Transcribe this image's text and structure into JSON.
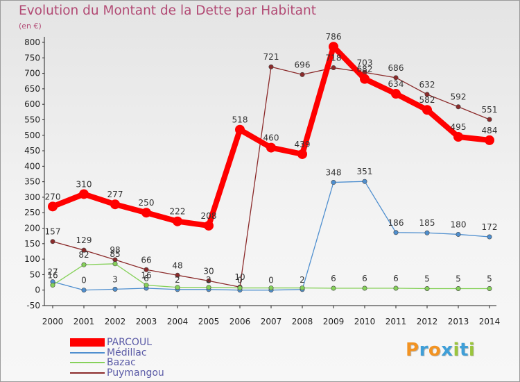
{
  "chart_data": {
    "type": "line",
    "title": "Evolution du Montant de la Dette par Habitant",
    "subtitle": "(en €)",
    "x": [
      2000,
      2001,
      2002,
      2003,
      2004,
      2005,
      2006,
      2007,
      2008,
      2009,
      2010,
      2011,
      2012,
      2013,
      2014
    ],
    "ylim": [
      -50,
      800
    ],
    "yticks": [
      -50,
      0,
      50,
      100,
      150,
      200,
      250,
      300,
      350,
      400,
      450,
      500,
      550,
      600,
      650,
      700,
      750,
      800
    ],
    "grid": false,
    "legend_position": "bottom-left",
    "series": [
      {
        "name": "PARCOUL",
        "color": "#ff0000",
        "values": [
          270,
          310,
          277,
          250,
          222,
          208,
          518,
          460,
          439,
          786,
          682,
          634,
          582,
          495,
          484
        ],
        "labels": [
          "270",
          "310",
          "277",
          "250",
          "222",
          "208",
          "518",
          "460",
          "439",
          "786",
          "682",
          "634",
          "582",
          "495",
          "484"
        ]
      },
      {
        "name": "Médillac",
        "color": "#4f8fcf",
        "values": [
          27,
          0,
          3,
          6,
          2,
          2,
          0,
          0,
          2,
          348,
          351,
          186,
          185,
          180,
          172
        ],
        "labels": [
          "27",
          "0",
          "3",
          "6",
          "2",
          "2",
          "0",
          "0",
          "2",
          "348",
          "351",
          "186",
          "185",
          "180",
          "172"
        ]
      },
      {
        "name": "Bazac",
        "color": "#86d15a",
        "values": [
          16,
          82,
          85,
          16,
          9,
          9,
          7,
          7,
          7,
          6,
          6,
          6,
          5,
          5,
          5
        ],
        "labels": [
          "16",
          "82",
          "85",
          "16",
          "",
          "",
          "",
          "",
          "",
          "6",
          "6",
          "6",
          "5",
          "5",
          "5"
        ]
      },
      {
        "name": "Puymangou",
        "color": "#8b2a2a",
        "values": [
          157,
          129,
          98,
          66,
          48,
          30,
          10,
          721,
          696,
          718,
          703,
          686,
          632,
          592,
          551
        ],
        "labels": [
          "157",
          "129",
          "98",
          "66",
          "48",
          "30",
          "10",
          "721",
          "696",
          "718",
          "703",
          "686",
          "632",
          "592",
          "551"
        ]
      }
    ]
  },
  "logo": {
    "text": "Proxiti",
    "colors": [
      "#f29322",
      "#3f9fd8",
      "#f29322",
      "#3f9fd8",
      "#9bc53d",
      "#3f9fd8",
      "#9bc53d"
    ]
  }
}
